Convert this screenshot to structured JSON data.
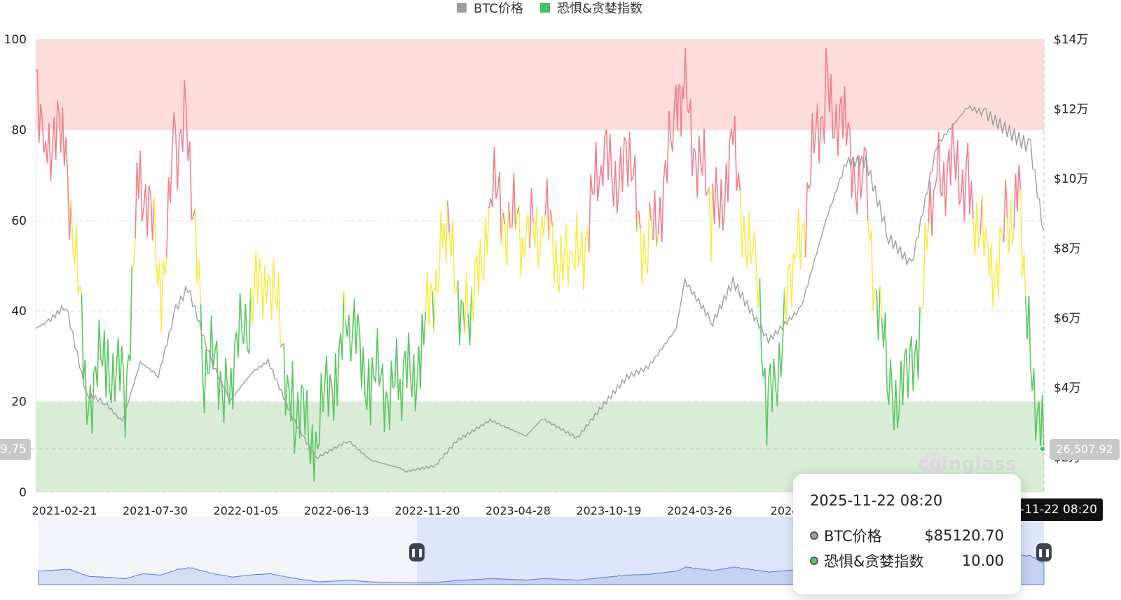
{
  "legend": {
    "btc_label": "BTC价格",
    "fg_label": "恐惧&贪婪指数"
  },
  "colors": {
    "btc": "#9e9e9e",
    "fg_legend": "#3ec26a",
    "greed": "#f47f8c",
    "neutral": "#f5ec4c",
    "fear": "#58c85f",
    "band_greed": "#fddcdc",
    "band_fear": "#d8ecd6",
    "navigator": "#dfe6fb",
    "nav_line": "#5b7bd5"
  },
  "left_axis": {
    "ticks": [
      "100",
      "80",
      "60",
      "40",
      "20",
      "0"
    ]
  },
  "right_axis": {
    "ticks": [
      "$14万",
      "$12万",
      "$10万",
      "$8万",
      "$6万",
      "$4万",
      "$2万"
    ]
  },
  "x_axis": {
    "ticks": [
      "2021-02-21",
      "2021-07-30",
      "2022-01-05",
      "2022-06-13",
      "2022-11-20",
      "2023-04-28",
      "2023-10-19",
      "2024-03-26",
      "2024-0"
    ]
  },
  "crosshair": {
    "left_value": "9.75",
    "right_value": "26,507.92",
    "date": "-11-22 08:20"
  },
  "tooltip": {
    "date": "2025-11-22 08:20",
    "btc_label": "BTC价格",
    "btc_value": "$85120.70",
    "fg_label": "恐惧&贪婪指数",
    "fg_value": "10.00"
  },
  "watermark": "coinglass",
  "chart_data": {
    "type": "line",
    "x_start": "2021-02-21",
    "x_end": "2025-11-22",
    "left_axis": {
      "min": 0,
      "max": 100,
      "label": ""
    },
    "right_axis": {
      "min": 10000,
      "max": 140000,
      "label": ""
    },
    "zones": [
      {
        "from": 80,
        "to": 100,
        "color": "#fddcdc"
      },
      {
        "from": 0,
        "to": 20,
        "color": "#d8ecd6"
      }
    ],
    "series": [
      {
        "name": "BTC价格",
        "axis": "right",
        "x": [
          "2021-02-21",
          "2021-03-15",
          "2021-04-14",
          "2021-05-19",
          "2021-06-20",
          "2021-07-20",
          "2021-08-20",
          "2021-09-20",
          "2021-10-20",
          "2021-11-10",
          "2021-12-20",
          "2022-01-22",
          "2022-03-01",
          "2022-03-28",
          "2022-05-09",
          "2022-06-18",
          "2022-08-13",
          "2022-09-20",
          "2022-11-09",
          "2022-11-21",
          "2023-01-10",
          "2023-02-15",
          "2023-04-14",
          "2023-06-15",
          "2023-07-13",
          "2023-09-11",
          "2023-10-23",
          "2023-12-05",
          "2024-01-11",
          "2024-02-28",
          "2024-03-14",
          "2024-05-01",
          "2024-06-05",
          "2024-08-05",
          "2024-09-30",
          "2024-11-12",
          "2024-12-17",
          "2025-01-20",
          "2025-02-28",
          "2025-04-08",
          "2025-05-22",
          "2025-07-14",
          "2025-08-14",
          "2025-10-06",
          "2025-10-30",
          "2025-11-22"
        ],
        "values": [
          57000,
          59000,
          63500,
          38000,
          35500,
          30000,
          47000,
          43000,
          62000,
          68000,
          47000,
          36000,
          44000,
          47000,
          31000,
          19500,
          24500,
          19000,
          16800,
          15800,
          17500,
          24500,
          30500,
          26000,
          31000,
          25500,
          34500,
          43000,
          46000,
          57000,
          71000,
          59000,
          71000,
          54000,
          63500,
          89000,
          106000,
          106000,
          84000,
          76000,
          111000,
          122000,
          120000,
          113000,
          110000,
          85120.7
        ]
      },
      {
        "name": "恐惧&贪婪指数",
        "axis": "left",
        "x": [
          "2021-02-21",
          "2021-03-10",
          "2021-04-14",
          "2021-05-20",
          "2021-06-25",
          "2021-07-25",
          "2021-08-20",
          "2021-09-25",
          "2021-10-20",
          "2021-11-10",
          "2021-12-05",
          "2022-01-20",
          "2022-02-20",
          "2022-03-28",
          "2022-05-12",
          "2022-06-18",
          "2022-07-25",
          "2022-08-14",
          "2022-09-20",
          "2022-11-10",
          "2022-12-15",
          "2023-01-25",
          "2023-03-10",
          "2023-04-15",
          "2023-06-15",
          "2023-07-15",
          "2023-09-01",
          "2023-10-25",
          "2023-12-10",
          "2024-01-10",
          "2024-02-28",
          "2024-03-12",
          "2024-05-01",
          "2024-06-05",
          "2024-07-15",
          "2024-08-05",
          "2024-09-20",
          "2024-11-12",
          "2024-12-17",
          "2025-01-20",
          "2025-02-28",
          "2025-04-08",
          "2025-05-22",
          "2025-07-14",
          "2025-08-20",
          "2025-09-20",
          "2025-10-10",
          "2025-10-30",
          "2025-11-22"
        ],
        "values": [
          93,
          80,
          76,
          22,
          30,
          22,
          72,
          46,
          78,
          82,
          29,
          25,
          38,
          50,
          18,
          12,
          30,
          36,
          25,
          22,
          30,
          58,
          35,
          66,
          55,
          60,
          46,
          72,
          70,
          52,
          80,
          88,
          60,
          74,
          45,
          18,
          50,
          90,
          78,
          64,
          22,
          24,
          72,
          70,
          48,
          58,
          70,
          30,
          10
        ]
      }
    ],
    "crosshair_value": {
      "x": "2025-11-22",
      "fear_greed": 10,
      "btc": 85120.7
    }
  }
}
